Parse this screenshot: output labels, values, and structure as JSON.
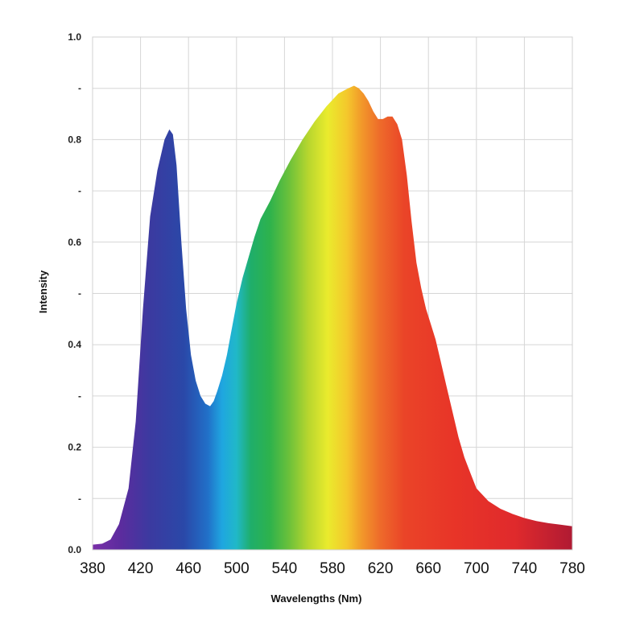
{
  "chart_data": {
    "type": "area",
    "title": "",
    "xlabel": "Wavelengths (Nm)",
    "ylabel": "Intensity",
    "xlim": [
      380,
      780
    ],
    "ylim": [
      0,
      1.0
    ],
    "grid": true,
    "x_ticks": [
      380,
      420,
      460,
      500,
      540,
      580,
      620,
      660,
      700,
      740,
      780
    ],
    "x_tick_labels": [
      "380",
      "420",
      "460",
      "500",
      "540",
      "580",
      "620",
      "660",
      "700",
      "740",
      "780"
    ],
    "y_ticks": [
      0.0,
      0.1,
      0.2,
      0.3,
      0.4,
      0.5,
      0.6,
      0.7,
      0.8,
      0.9,
      1.0
    ],
    "y_tick_labels": [
      "0.0",
      "-",
      "0.2",
      "-",
      "0.4",
      "-",
      "0.6",
      "-",
      "0.8",
      "-",
      "1.0"
    ],
    "fill": "visible-spectrum gradient",
    "series": [
      {
        "x": [
          380,
          388,
          395,
          402,
          410,
          416,
          422,
          428,
          434,
          440,
          444,
          447,
          450,
          454,
          458,
          462,
          466,
          470,
          474,
          478,
          481,
          484,
          488,
          492,
          496,
          500,
          505,
          510,
          515,
          520,
          528,
          536,
          545,
          555,
          565,
          575,
          585,
          593,
          598,
          602,
          606,
          610,
          614,
          618,
          622,
          626,
          630,
          634,
          638,
          642,
          646,
          650,
          654,
          658,
          662,
          666,
          670,
          675,
          680,
          685,
          690,
          695,
          700,
          710,
          720,
          730,
          740,
          750,
          760,
          770,
          780
        ],
        "y": [
          0.01,
          0.012,
          0.02,
          0.05,
          0.12,
          0.25,
          0.47,
          0.65,
          0.74,
          0.8,
          0.82,
          0.81,
          0.75,
          0.6,
          0.47,
          0.38,
          0.33,
          0.3,
          0.285,
          0.28,
          0.29,
          0.31,
          0.34,
          0.38,
          0.43,
          0.48,
          0.53,
          0.57,
          0.61,
          0.645,
          0.68,
          0.72,
          0.76,
          0.8,
          0.835,
          0.865,
          0.89,
          0.9,
          0.905,
          0.9,
          0.89,
          0.875,
          0.855,
          0.84,
          0.84,
          0.845,
          0.845,
          0.83,
          0.8,
          0.73,
          0.64,
          0.56,
          0.51,
          0.47,
          0.44,
          0.41,
          0.37,
          0.32,
          0.27,
          0.22,
          0.18,
          0.15,
          0.12,
          0.095,
          0.08,
          0.07,
          0.062,
          0.056,
          0.052,
          0.049,
          0.046
        ]
      }
    ]
  }
}
